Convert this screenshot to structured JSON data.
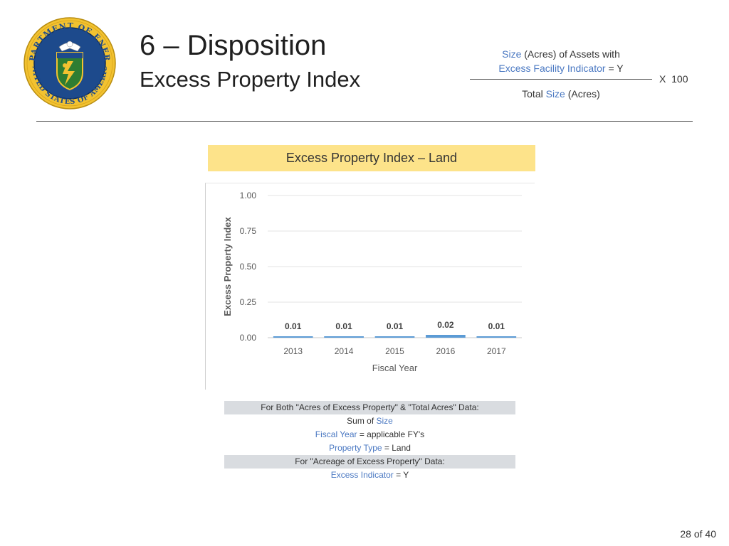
{
  "header": {
    "title_line1": "6 – Disposition",
    "title_line2": "Excess Property Index",
    "seal": {
      "label": "DEPARTMENT OF ENERGY · UNITED STATES OF AMERICA",
      "ring_color": "#f2c230",
      "field_color": "#1d4a8c",
      "shield_color": "#2e7d32"
    }
  },
  "formula": {
    "numerator_line1": {
      "term": "Size",
      "rest": " (Acres) of Assets with"
    },
    "numerator_line2": {
      "term": "Excess Facility Indicator",
      "rest": " = Y"
    },
    "multiplier": "X  100",
    "denominator": {
      "prefix": "Total ",
      "term": "Size",
      "suffix": " (Acres)"
    },
    "term_color": "#4a78c2"
  },
  "chart_title": "Excess Property Index – Land",
  "chart_data": {
    "type": "bar",
    "categories": [
      "2013",
      "2014",
      "2015",
      "2016",
      "2017"
    ],
    "values": [
      0.01,
      0.01,
      0.01,
      0.02,
      0.01
    ],
    "data_labels": [
      "0.01",
      "0.01",
      "0.01",
      "0.02",
      "0.01"
    ],
    "xlabel": "Fiscal Year",
    "ylabel": "Excess Property Index",
    "ylim": [
      0,
      1.0
    ],
    "yticks": [
      "0.00",
      "0.25",
      "0.50",
      "0.75",
      "1.00"
    ],
    "ytick_values": [
      0,
      0.25,
      0.5,
      0.75,
      1.0
    ],
    "grid": true,
    "bar_color": "#5b9bd5"
  },
  "definitions": {
    "row1": "For Both \"Acres of Excess Property\" & \"Total Acres\" Data:",
    "row2": {
      "prefix": "Sum of ",
      "term": "Size"
    },
    "row3": {
      "term": "Fiscal Year",
      "rest": " = applicable FY's"
    },
    "row4": {
      "term": "Property Type",
      "rest": " = Land"
    },
    "row5": "For \"Acreage of Excess Property\" Data:",
    "row6": {
      "term": "Excess Indicator",
      "rest": " = Y"
    }
  },
  "page_number": "28 of 40"
}
